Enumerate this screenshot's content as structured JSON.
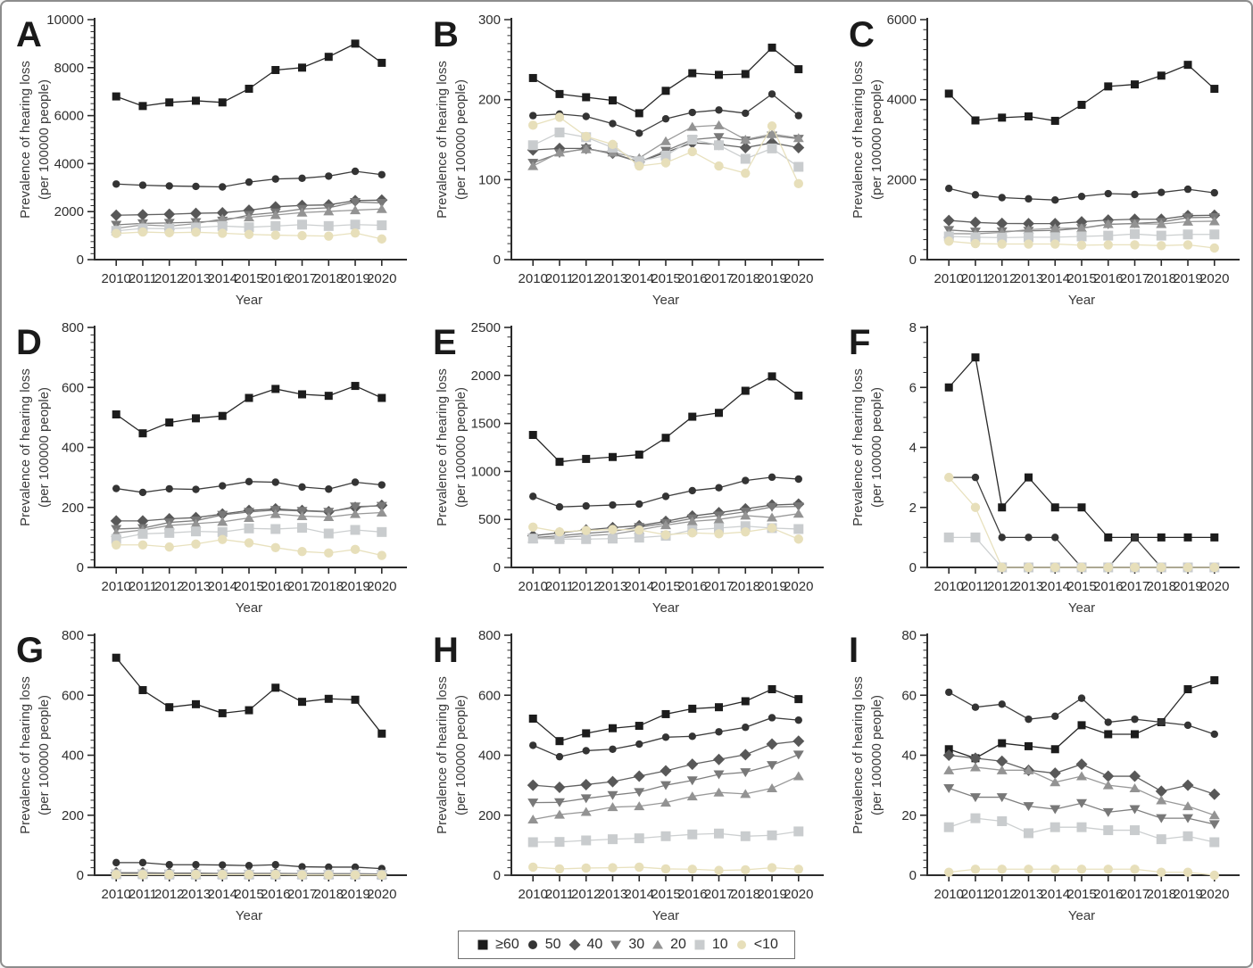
{
  "axis": {
    "xlabel": "Year",
    "ylabel_line1": "Prevalence of hearing loss",
    "ylabel_line2": "(per 100000 people)",
    "years": [
      2010,
      2011,
      2012,
      2013,
      2014,
      2015,
      2016,
      2017,
      2018,
      2019,
      2020
    ]
  },
  "legend": {
    "items": [
      {
        "label": "≥60",
        "marker": "square",
        "color": "#1c1c1c"
      },
      {
        "label": "50",
        "marker": "circle",
        "color": "#343434"
      },
      {
        "label": "40",
        "marker": "diamond",
        "color": "#585858"
      },
      {
        "label": "30",
        "marker": "triangle-down",
        "color": "#787878"
      },
      {
        "label": "20",
        "marker": "triangle-up",
        "color": "#939393"
      },
      {
        "label": "10",
        "marker": "square",
        "color": "#c9ccce"
      },
      {
        "label": "<10",
        "marker": "circle",
        "color": "#e7dfba"
      }
    ]
  },
  "chart_data": [
    {
      "panel": "A",
      "type": "line",
      "ylim": [
        0,
        10000
      ],
      "ytick_step": 2000,
      "yminor_step": 250,
      "series": [
        {
          "name": "≥60",
          "values": [
            6800,
            6400,
            6550,
            6620,
            6550,
            7120,
            7900,
            8000,
            8450,
            9000,
            8200
          ]
        },
        {
          "name": "50",
          "values": [
            3150,
            3100,
            3070,
            3050,
            3030,
            3230,
            3360,
            3390,
            3480,
            3680,
            3540
          ]
        },
        {
          "name": "40",
          "values": [
            1850,
            1870,
            1890,
            1930,
            1950,
            2060,
            2200,
            2260,
            2280,
            2460,
            2480
          ]
        },
        {
          "name": "30",
          "values": [
            1450,
            1510,
            1530,
            1560,
            1620,
            1860,
            1960,
            2110,
            2160,
            2400,
            2360
          ]
        },
        {
          "name": "20",
          "values": [
            1300,
            1450,
            1400,
            1500,
            1700,
            1760,
            1860,
            1960,
            2010,
            2060,
            2110
          ]
        },
        {
          "name": "10",
          "values": [
            1200,
            1300,
            1290,
            1340,
            1400,
            1350,
            1400,
            1460,
            1400,
            1460,
            1430
          ]
        },
        {
          "name": "<10",
          "values": [
            1090,
            1150,
            1120,
            1140,
            1100,
            1050,
            1020,
            1000,
            980,
            1110,
            860
          ]
        }
      ]
    },
    {
      "panel": "B",
      "type": "line",
      "ylim": [
        0,
        300
      ],
      "ytick_step": 100,
      "yminor_step": 10,
      "series": [
        {
          "name": "≥60",
          "values": [
            227,
            207,
            203,
            199,
            183,
            211,
            233,
            231,
            232,
            265,
            238
          ]
        },
        {
          "name": "50",
          "values": [
            180,
            182,
            179,
            170,
            158,
            176,
            184,
            187,
            183,
            207,
            180
          ]
        },
        {
          "name": "40",
          "values": [
            137,
            139,
            139,
            133,
            122,
            134,
            146,
            144,
            140,
            146,
            140
          ]
        },
        {
          "name": "30",
          "values": [
            121,
            133,
            139,
            132,
            122,
            136,
            150,
            153,
            149,
            155,
            151
          ]
        },
        {
          "name": "20",
          "values": [
            117,
            134,
            138,
            134,
            127,
            148,
            166,
            168,
            150,
            157,
            152
          ]
        },
        {
          "name": "10",
          "values": [
            143,
            159,
            153,
            140,
            123,
            130,
            150,
            143,
            126,
            139,
            116
          ]
        },
        {
          "name": "<10",
          "values": [
            168,
            178,
            154,
            144,
            117,
            121,
            135,
            117,
            108,
            167,
            95
          ]
        }
      ]
    },
    {
      "panel": "C",
      "type": "line",
      "ylim": [
        0,
        6000
      ],
      "ytick_step": 2000,
      "yminor_step": 250,
      "series": [
        {
          "name": "≥60",
          "values": [
            4150,
            3480,
            3550,
            3580,
            3470,
            3870,
            4330,
            4380,
            4600,
            4870,
            4270
          ]
        },
        {
          "name": "50",
          "values": [
            1780,
            1620,
            1550,
            1520,
            1490,
            1580,
            1650,
            1630,
            1680,
            1760,
            1670
          ]
        },
        {
          "name": "40",
          "values": [
            980,
            930,
            905,
            900,
            900,
            945,
            990,
            1010,
            1010,
            1100,
            1110
          ]
        },
        {
          "name": "30",
          "values": [
            740,
            700,
            705,
            720,
            730,
            785,
            880,
            905,
            940,
            1050,
            1060
          ]
        },
        {
          "name": "20",
          "values": [
            650,
            645,
            680,
            750,
            780,
            790,
            890,
            895,
            890,
            950,
            960
          ]
        },
        {
          "name": "10",
          "values": [
            580,
            560,
            550,
            560,
            560,
            580,
            600,
            640,
            600,
            630,
            630
          ]
        },
        {
          "name": "<10",
          "values": [
            460,
            400,
            390,
            390,
            390,
            360,
            370,
            370,
            350,
            370,
            290
          ]
        }
      ]
    },
    {
      "panel": "D",
      "type": "line",
      "ylim": [
        0,
        800
      ],
      "ytick_step": 200,
      "yminor_step": 25,
      "series": [
        {
          "name": "≥60",
          "values": [
            510,
            447,
            483,
            497,
            505,
            565,
            595,
            577,
            572,
            605,
            565
          ]
        },
        {
          "name": "50",
          "values": [
            263,
            250,
            262,
            260,
            272,
            286,
            284,
            268,
            261,
            284,
            275
          ]
        },
        {
          "name": "40",
          "values": [
            155,
            155,
            162,
            166,
            178,
            190,
            195,
            190,
            186,
            200,
            207
          ]
        },
        {
          "name": "30",
          "values": [
            128,
            131,
            150,
            156,
            175,
            185,
            191,
            188,
            185,
            203,
            205
          ]
        },
        {
          "name": "20",
          "values": [
            115,
            125,
            140,
            146,
            152,
            165,
            178,
            171,
            168,
            178,
            183
          ]
        },
        {
          "name": "10",
          "values": [
            95,
            112,
            115,
            120,
            118,
            130,
            128,
            132,
            113,
            125,
            118
          ]
        },
        {
          "name": "<10",
          "values": [
            75,
            75,
            68,
            78,
            93,
            82,
            66,
            53,
            48,
            60,
            40
          ]
        }
      ]
    },
    {
      "panel": "E",
      "type": "line",
      "ylim": [
        0,
        2500
      ],
      "ytick_step": 500,
      "yminor_step": 100,
      "series": [
        {
          "name": "≥60",
          "values": [
            1380,
            1100,
            1130,
            1150,
            1175,
            1350,
            1570,
            1610,
            1840,
            1990,
            1790
          ]
        },
        {
          "name": "50",
          "values": [
            740,
            630,
            640,
            650,
            660,
            740,
            800,
            830,
            905,
            940,
            920
          ]
        },
        {
          "name": "40",
          "values": [
            330,
            360,
            390,
            415,
            435,
            480,
            535,
            570,
            610,
            650,
            660
          ]
        },
        {
          "name": "30",
          "values": [
            310,
            330,
            355,
            375,
            420,
            460,
            510,
            540,
            580,
            630,
            635
          ]
        },
        {
          "name": "20",
          "values": [
            300,
            310,
            330,
            345,
            390,
            440,
            480,
            500,
            540,
            520,
            560
          ]
        },
        {
          "name": "10",
          "values": [
            300,
            295,
            295,
            300,
            310,
            330,
            390,
            410,
            430,
            410,
            400
          ]
        },
        {
          "name": "<10",
          "values": [
            420,
            370,
            385,
            395,
            390,
            340,
            360,
            350,
            370,
            410,
            295
          ]
        }
      ]
    },
    {
      "panel": "F",
      "type": "line",
      "ylim": [
        0,
        8
      ],
      "ytick_step": 2,
      "yminor_step": 0.5,
      "series": [
        {
          "name": "≥60",
          "values": [
            6,
            7,
            2,
            3,
            2,
            2,
            1,
            1,
            1,
            1,
            1
          ]
        },
        {
          "name": "50",
          "values": [
            3,
            3,
            1,
            1,
            1,
            0,
            0,
            1,
            0,
            0,
            0
          ]
        },
        {
          "name": "10",
          "values": [
            1,
            1,
            0,
            0,
            0,
            0,
            0,
            0,
            0,
            0,
            0
          ]
        },
        {
          "name": "<10",
          "values": [
            3,
            2,
            0,
            0,
            0,
            0,
            0,
            0,
            0,
            0,
            0
          ]
        }
      ]
    },
    {
      "panel": "G",
      "type": "line",
      "ylim": [
        0,
        800
      ],
      "ytick_step": 200,
      "yminor_step": 25,
      "series": [
        {
          "name": "≥60",
          "values": [
            725,
            617,
            560,
            570,
            540,
            550,
            625,
            578,
            588,
            585,
            472
          ]
        },
        {
          "name": "50",
          "values": [
            42,
            42,
            35,
            35,
            34,
            32,
            35,
            28,
            27,
            27,
            22
          ]
        },
        {
          "name": "40",
          "values": [
            8,
            8,
            7,
            7,
            6,
            6,
            6,
            5,
            5,
            5,
            4
          ]
        },
        {
          "name": "30",
          "values": [
            6,
            6,
            5,
            5,
            5,
            4,
            4,
            4,
            3,
            3,
            3
          ]
        },
        {
          "name": "20",
          "values": [
            4,
            4,
            4,
            3,
            3,
            3,
            3,
            3,
            2,
            2,
            2
          ]
        },
        {
          "name": "10",
          "values": [
            3,
            3,
            2,
            2,
            2,
            2,
            2,
            2,
            2,
            2,
            1
          ]
        },
        {
          "name": "<10",
          "values": [
            2,
            2,
            2,
            2,
            2,
            2,
            2,
            1,
            1,
            1,
            1
          ]
        }
      ]
    },
    {
      "panel": "H",
      "type": "line",
      "ylim": [
        0,
        800
      ],
      "ytick_step": 200,
      "yminor_step": 25,
      "series": [
        {
          "name": "≥60",
          "values": [
            522,
            447,
            473,
            490,
            498,
            537,
            555,
            560,
            580,
            620,
            587
          ]
        },
        {
          "name": "50",
          "values": [
            433,
            395,
            415,
            420,
            437,
            460,
            463,
            478,
            493,
            525,
            517
          ]
        },
        {
          "name": "40",
          "values": [
            300,
            293,
            302,
            312,
            330,
            348,
            370,
            386,
            402,
            437,
            447
          ]
        },
        {
          "name": "30",
          "values": [
            242,
            243,
            256,
            267,
            277,
            300,
            316,
            336,
            343,
            367,
            402
          ]
        },
        {
          "name": "20",
          "values": [
            186,
            202,
            211,
            227,
            230,
            242,
            263,
            276,
            271,
            290,
            330
          ]
        },
        {
          "name": "10",
          "values": [
            110,
            111,
            116,
            120,
            123,
            130,
            136,
            139,
            130,
            133,
            146
          ]
        },
        {
          "name": "<10",
          "values": [
            27,
            21,
            24,
            25,
            27,
            21,
            20,
            16,
            18,
            25,
            20
          ]
        }
      ]
    },
    {
      "panel": "I",
      "type": "line",
      "ylim": [
        0,
        80
      ],
      "ytick_step": 20,
      "yminor_step": 2.5,
      "series": [
        {
          "name": "≥60",
          "values": [
            42,
            39,
            44,
            43,
            42,
            50,
            47,
            47,
            51,
            62,
            65
          ]
        },
        {
          "name": "50",
          "values": [
            61,
            56,
            57,
            52,
            53,
            59,
            51,
            52,
            51,
            50,
            47
          ]
        },
        {
          "name": "40",
          "values": [
            40,
            39,
            38,
            35,
            34,
            37,
            33,
            33,
            28,
            30,
            27
          ]
        },
        {
          "name": "30",
          "values": [
            29,
            26,
            26,
            23,
            22,
            24,
            21,
            22,
            19,
            19,
            17
          ]
        },
        {
          "name": "20",
          "values": [
            35,
            36,
            35,
            35,
            31,
            33,
            30,
            29,
            25,
            23,
            20
          ]
        },
        {
          "name": "10",
          "values": [
            16,
            19,
            18,
            14,
            16,
            16,
            15,
            15,
            12,
            13,
            11
          ]
        },
        {
          "name": "<10",
          "values": [
            1,
            2,
            2,
            2,
            2,
            2,
            2,
            2,
            1,
            1,
            0
          ]
        }
      ]
    }
  ]
}
